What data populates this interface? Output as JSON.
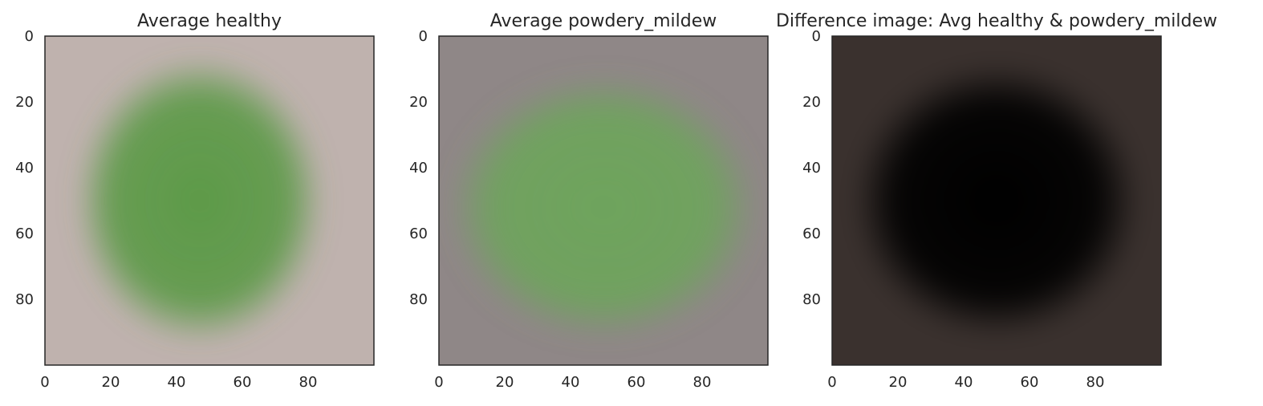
{
  "chart_data": [
    {
      "type": "heatmap",
      "title": "Average healthy",
      "xlabel": "",
      "ylabel": "",
      "xlim": [
        0,
        100
      ],
      "ylim": [
        100,
        0
      ],
      "x_ticks": [
        0,
        20,
        40,
        60,
        80
      ],
      "y_ticks": [
        0,
        20,
        40,
        60,
        80
      ],
      "grid": false,
      "image": {
        "description": "average leaf image",
        "background_color": "#bfb2ae",
        "blob_color": "#5d9a48",
        "blob_center": [
          47,
          50
        ],
        "blob_radius": [
          33,
          38
        ]
      }
    },
    {
      "type": "heatmap",
      "title": "Average powdery_mildew",
      "xlabel": "",
      "ylabel": "",
      "xlim": [
        0,
        100
      ],
      "ylim": [
        100,
        0
      ],
      "x_ticks": [
        0,
        20,
        40,
        60,
        80
      ],
      "y_ticks": [
        0,
        20,
        40,
        60,
        80
      ],
      "grid": false,
      "image": {
        "description": "average leaf image",
        "background_color": "#8f8787",
        "blob_color": "#6ea45c",
        "blob_center": [
          50,
          52
        ],
        "blob_radius": [
          41,
          35
        ]
      }
    },
    {
      "type": "heatmap",
      "title": "Difference image: Avg healthy & powdery_mildew",
      "xlabel": "",
      "ylabel": "",
      "xlim": [
        0,
        100
      ],
      "ylim": [
        100,
        0
      ],
      "x_ticks": [
        0,
        20,
        40,
        60,
        80
      ],
      "y_ticks": [
        0,
        20,
        40,
        60,
        80
      ],
      "grid": false,
      "image": {
        "description": "difference image",
        "background_color": "#3a312e",
        "blob_color": "#050505",
        "blob_center": [
          50,
          50
        ],
        "blob_radius": [
          38,
          36
        ]
      }
    }
  ]
}
